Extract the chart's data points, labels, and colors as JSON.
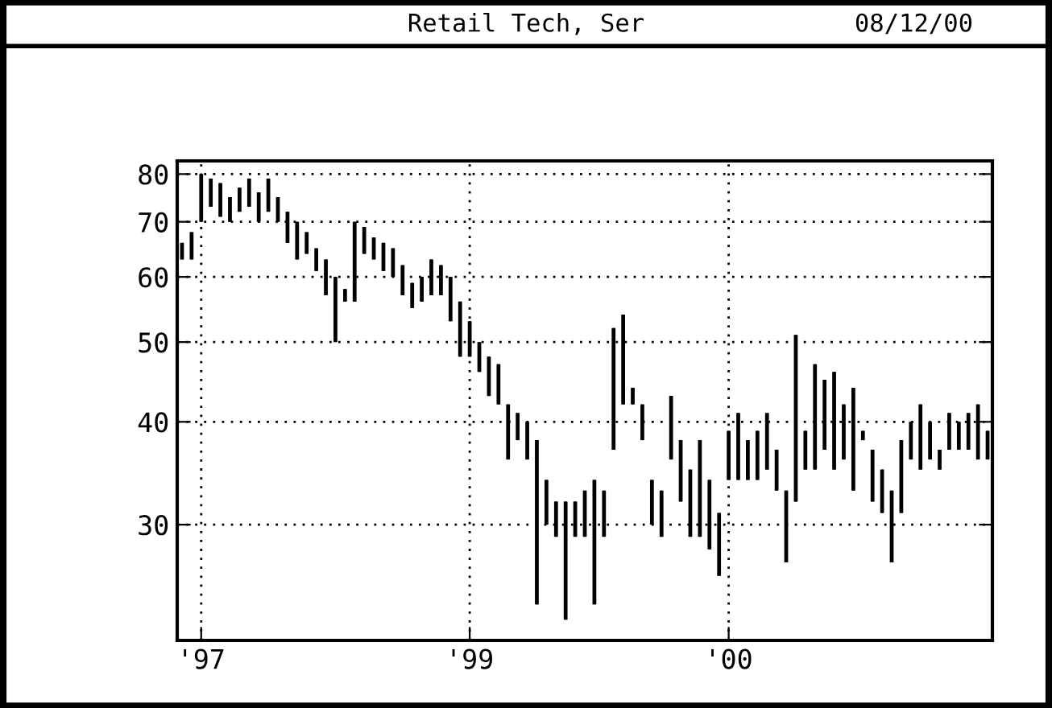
{
  "chart_data": {
    "type": "candlestick",
    "title": "Retail Tech, Ser",
    "annotations": [
      "08/12/00"
    ],
    "categories": [
      null,
      null,
      "'97",
      null,
      null,
      null,
      null,
      null,
      null,
      null,
      null,
      null,
      null,
      null,
      null,
      null,
      null,
      null,
      null,
      null,
      null,
      null,
      null,
      null,
      null,
      null,
      null,
      null,
      null,
      null,
      "'99",
      null,
      null,
      null,
      null,
      null,
      null,
      null,
      null,
      null,
      null,
      null,
      null,
      null,
      null,
      null,
      null,
      null,
      null,
      null,
      null,
      null,
      null,
      null,
      null,
      null,
      null,
      "'00",
      null,
      null,
      null,
      null,
      null,
      null,
      null,
      null,
      null,
      null,
      null,
      null,
      null,
      null,
      null,
      null,
      null,
      null,
      null,
      null,
      null,
      null,
      null,
      null,
      null,
      null,
      null
    ],
    "ohlc": [
      [
        63,
        66,
        63,
        66
      ],
      [
        63,
        68,
        63,
        68
      ],
      [
        70,
        80,
        70,
        80
      ],
      [
        73,
        79,
        73,
        79
      ],
      [
        71,
        78,
        71,
        78
      ],
      [
        70,
        75,
        70,
        75
      ],
      [
        72,
        77,
        72,
        77
      ],
      [
        73,
        79,
        73,
        79
      ],
      [
        70,
        76,
        70,
        76
      ],
      [
        72,
        79,
        72,
        79
      ],
      [
        70,
        75,
        70,
        75
      ],
      [
        66,
        72,
        66,
        72
      ],
      [
        63,
        70,
        63,
        70
      ],
      [
        64,
        68,
        64,
        68
      ],
      [
        61,
        65,
        61,
        65
      ],
      [
        57,
        63,
        57,
        63
      ],
      [
        50,
        60,
        50,
        60
      ],
      [
        56,
        58,
        56,
        58
      ],
      [
        56,
        70,
        56,
        70
      ],
      [
        64,
        69,
        64,
        69
      ],
      [
        63,
        67,
        63,
        67
      ],
      [
        61,
        66,
        61,
        66
      ],
      [
        60,
        65,
        60,
        65
      ],
      [
        57,
        62,
        57,
        62
      ],
      [
        55,
        59,
        55,
        59
      ],
      [
        56,
        60,
        56,
        60
      ],
      [
        57,
        63,
        57,
        63
      ],
      [
        57,
        62,
        57,
        62
      ],
      [
        53,
        60,
        53,
        60
      ],
      [
        48,
        56,
        48,
        56
      ],
      [
        48,
        53,
        48,
        53
      ],
      [
        46,
        50,
        46,
        50
      ],
      [
        43,
        48,
        43,
        48
      ],
      [
        42,
        47,
        42,
        47
      ],
      [
        36,
        42,
        36,
        42
      ],
      [
        38,
        41,
        38,
        41
      ],
      [
        36,
        40,
        36,
        40
      ],
      [
        24,
        38,
        24,
        38
      ],
      [
        30,
        34,
        30,
        34
      ],
      [
        29,
        32,
        29,
        32
      ],
      [
        23,
        32,
        23,
        32
      ],
      [
        29,
        32,
        29,
        32
      ],
      [
        29,
        33,
        29,
        33
      ],
      [
        24,
        34,
        24,
        34
      ],
      [
        29,
        33,
        29,
        33
      ],
      [
        37,
        52,
        37,
        52
      ],
      [
        42,
        54,
        42,
        54
      ],
      [
        42,
        44,
        42,
        44
      ],
      [
        38,
        42,
        38,
        42
      ],
      [
        30,
        34,
        30,
        34
      ],
      [
        29,
        33,
        29,
        33
      ],
      [
        36,
        43,
        36,
        43
      ],
      [
        32,
        38,
        32,
        38
      ],
      [
        29,
        35,
        29,
        35
      ],
      [
        29,
        38,
        29,
        38
      ],
      [
        28,
        34,
        28,
        34
      ],
      [
        26,
        31,
        26,
        31
      ],
      [
        34,
        39,
        34,
        39
      ],
      [
        34,
        41,
        34,
        41
      ],
      [
        34,
        38,
        34,
        38
      ],
      [
        34,
        39,
        34,
        39
      ],
      [
        35,
        41,
        35,
        41
      ],
      [
        33,
        37,
        33,
        37
      ],
      [
        27,
        33,
        27,
        33
      ],
      [
        32,
        51,
        32,
        51
      ],
      [
        35,
        39,
        35,
        39
      ],
      [
        35,
        47,
        35,
        47
      ],
      [
        37,
        45,
        37,
        45
      ],
      [
        35,
        46,
        35,
        46
      ],
      [
        36,
        42,
        36,
        42
      ],
      [
        33,
        44,
        33,
        44
      ],
      [
        38,
        39,
        38,
        39
      ],
      [
        32,
        37,
        32,
        37
      ],
      [
        31,
        35,
        31,
        35
      ],
      [
        27,
        33,
        27,
        33
      ],
      [
        31,
        38,
        31,
        38
      ],
      [
        36,
        40,
        36,
        40
      ],
      [
        35,
        42,
        35,
        42
      ],
      [
        36,
        40,
        36,
        40
      ],
      [
        35,
        37,
        35,
        37
      ],
      [
        37,
        41,
        37,
        41
      ],
      [
        37,
        40,
        37,
        40
      ],
      [
        37,
        41,
        37,
        41
      ],
      [
        36,
        42,
        36,
        42
      ],
      [
        36,
        39,
        36,
        39
      ]
    ],
    "color": "#000000",
    "log": true,
    "ylim": [
      21.7,
      83
    ],
    "yticks": [
      30,
      40,
      50,
      60,
      70,
      80
    ],
    "grid": true
  }
}
